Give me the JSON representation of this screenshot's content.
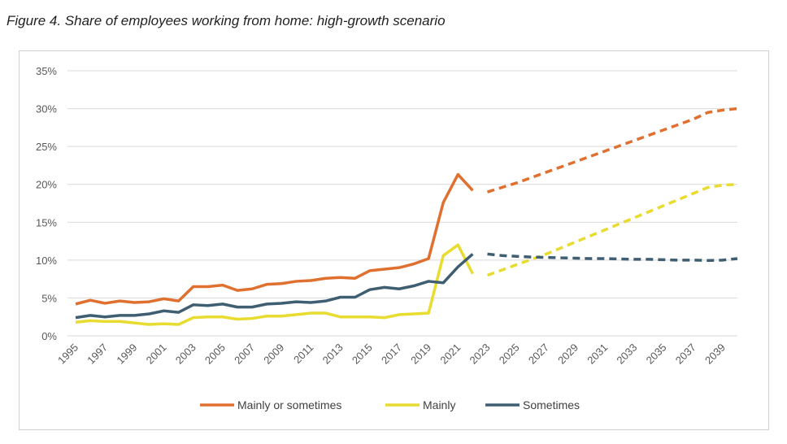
{
  "chart_data": {
    "type": "line",
    "title": "Figure 4. Share of employees working from home: high-growth scenario",
    "xlabel": "",
    "ylabel": "",
    "ylim": [
      0,
      35
    ],
    "yticks": [
      "0%",
      "5%",
      "10%",
      "15%",
      "20%",
      "25%",
      "30%",
      "35%"
    ],
    "xlim": [
      1995,
      2040
    ],
    "xticks": [
      "1995",
      "1997",
      "1999",
      "2001",
      "2003",
      "2005",
      "2007",
      "2009",
      "2011",
      "2013",
      "2015",
      "2017",
      "2019",
      "2021",
      "2023",
      "2025",
      "2027",
      "2029",
      "2031",
      "2033",
      "2035",
      "2037",
      "2039"
    ],
    "grid": "horizontal",
    "legend": "bottom",
    "historical_years": [
      1995,
      1996,
      1997,
      1998,
      1999,
      2000,
      2001,
      2002,
      2003,
      2004,
      2005,
      2006,
      2007,
      2008,
      2009,
      2010,
      2011,
      2012,
      2013,
      2014,
      2015,
      2016,
      2017,
      2018,
      2019,
      2020,
      2021,
      2022
    ],
    "projection_years": [
      2023,
      2024,
      2025,
      2026,
      2027,
      2028,
      2029,
      2030,
      2031,
      2032,
      2033,
      2034,
      2035,
      2036,
      2037,
      2038,
      2039,
      2040
    ],
    "series": [
      {
        "name": "Mainly or sometimes",
        "color": "#E07030",
        "values": [
          4.2,
          4.7,
          4.3,
          4.6,
          4.4,
          4.5,
          4.9,
          4.6,
          6.5,
          6.5,
          6.7,
          6.0,
          6.2,
          6.8,
          6.9,
          7.2,
          7.3,
          7.6,
          7.7,
          7.6,
          8.6,
          8.8,
          9.0,
          9.5,
          10.2,
          17.6,
          21.3,
          19.2
        ],
        "projection": [
          19.0,
          19.6,
          20.2,
          20.9,
          21.6,
          22.3,
          23.0,
          23.7,
          24.4,
          25.1,
          25.8,
          26.5,
          27.2,
          27.9,
          28.6,
          29.5,
          29.8,
          30.0
        ]
      },
      {
        "name": "Mainly",
        "color": "#E8DC30",
        "values": [
          1.8,
          2.0,
          1.9,
          1.9,
          1.7,
          1.5,
          1.6,
          1.5,
          2.4,
          2.5,
          2.5,
          2.2,
          2.3,
          2.6,
          2.6,
          2.8,
          3.0,
          3.0,
          2.5,
          2.5,
          2.5,
          2.4,
          2.8,
          2.9,
          3.0,
          10.6,
          12.0,
          8.2
        ],
        "projection": [
          8.0,
          8.7,
          9.4,
          10.1,
          10.8,
          11.6,
          12.4,
          13.2,
          14.0,
          14.8,
          15.6,
          16.4,
          17.2,
          18.0,
          18.8,
          19.6,
          19.9,
          20.0
        ]
      },
      {
        "name": "Sometimes",
        "color": "#3F5E72",
        "values": [
          2.4,
          2.7,
          2.5,
          2.7,
          2.7,
          2.9,
          3.3,
          3.1,
          4.1,
          4.0,
          4.2,
          3.8,
          3.8,
          4.2,
          4.3,
          4.5,
          4.4,
          4.6,
          5.1,
          5.1,
          6.1,
          6.4,
          6.2,
          6.6,
          7.2,
          7.0,
          9.1,
          10.8
        ],
        "projection": [
          10.8,
          10.6,
          10.5,
          10.4,
          10.35,
          10.3,
          10.25,
          10.2,
          10.2,
          10.15,
          10.1,
          10.1,
          10.05,
          10.0,
          10.0,
          9.95,
          10.0,
          10.2
        ]
      }
    ]
  }
}
